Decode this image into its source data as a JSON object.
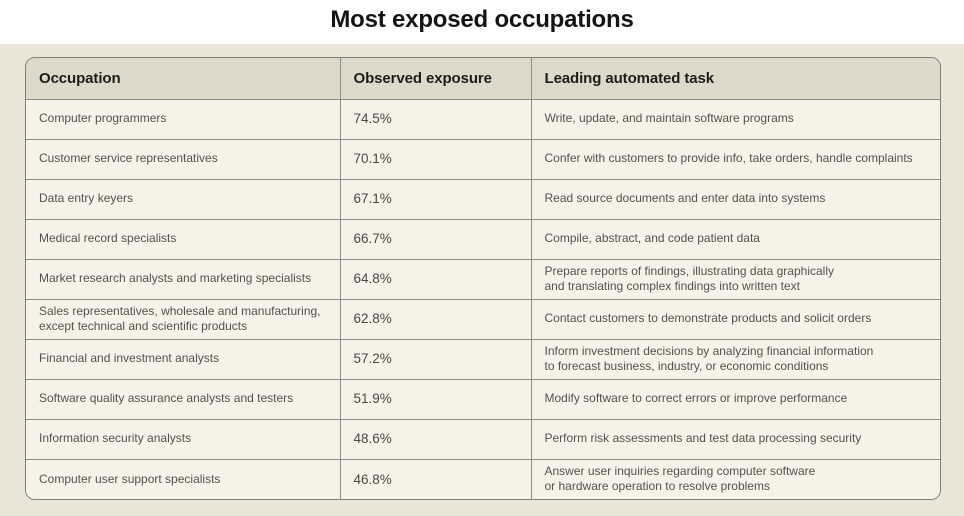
{
  "title": "Most exposed occupations",
  "colors": {
    "backdrop": "#e9e6d9",
    "header_bg": "#ddd9cb",
    "cell_bg": "#f4f2e9",
    "border": "#8f8f87",
    "title_text": "#141414",
    "body_text": "#54524a"
  },
  "chart_data": {
    "type": "table",
    "title": "Most exposed occupations",
    "columns": [
      "Occupation",
      "Observed exposure",
      "Leading automated task"
    ],
    "rows": [
      {
        "occupation": "Computer programmers",
        "exposure": "74.5%",
        "task": "Write, update, and maintain software programs"
      },
      {
        "occupation": "Customer service representatives",
        "exposure": "70.1%",
        "task": "Confer with customers to provide info, take orders, handle complaints"
      },
      {
        "occupation": "Data entry keyers",
        "exposure": "67.1%",
        "task": "Read source documents and enter data into systems"
      },
      {
        "occupation": "Medical record specialists",
        "exposure": "66.7%",
        "task": "Compile, abstract, and code patient data"
      },
      {
        "occupation": "Market research analysts and marketing specialists",
        "exposure": "64.8%",
        "task": "Prepare reports of findings, illustrating data graphically\nand translating complex findings into written text"
      },
      {
        "occupation": "Sales representatives, wholesale and manufacturing,\nexcept technical and scientific products",
        "exposure": "62.8%",
        "task": "Contact customers to demonstrate products and solicit orders"
      },
      {
        "occupation": "Financial and investment analysts",
        "exposure": "57.2%",
        "task": "Inform investment decisions by analyzing financial information\nto forecast business, industry, or economic conditions"
      },
      {
        "occupation": "Software quality assurance analysts and testers",
        "exposure": "51.9%",
        "task": "Modify software to correct errors or improve performance"
      },
      {
        "occupation": "Information security analysts",
        "exposure": "48.6%",
        "task": "Perform risk assessments and test data processing security"
      },
      {
        "occupation": "Computer user support specialists",
        "exposure": "46.8%",
        "task": "Answer user inquiries regarding computer software\nor hardware operation to resolve problems"
      }
    ]
  }
}
